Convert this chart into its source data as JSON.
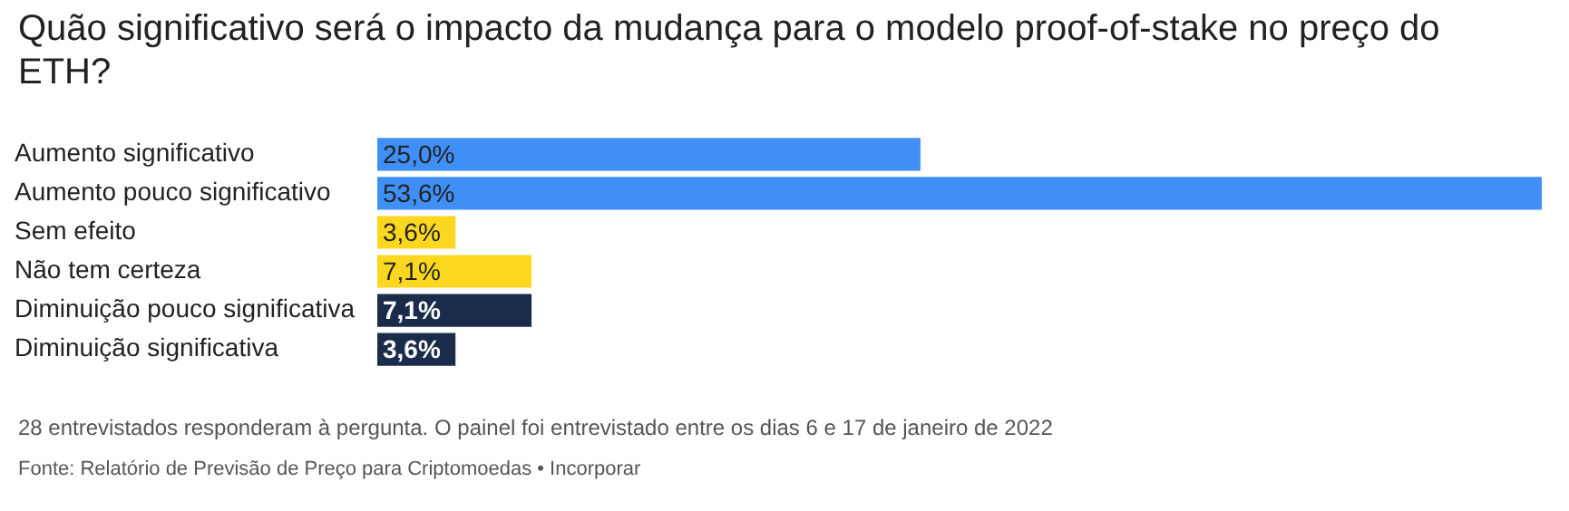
{
  "chart_data": {
    "type": "bar",
    "orientation": "horizontal",
    "title": "Quão significativo será o impacto da mudança para o modelo proof-of-stake no preço do ETH?",
    "categories": [
      "Aumento significativo",
      "Aumento pouco significativo",
      "Sem efeito",
      "Não tem certeza",
      "Diminuição pouco significativa",
      "Diminuição significativa"
    ],
    "values": [
      25.0,
      53.6,
      3.6,
      7.1,
      7.1,
      3.6
    ],
    "colors": [
      "#3f8ff7",
      "#3f8ff7",
      "#fbd720",
      "#fbd720",
      "#1b2c4b",
      "#1b2c4b"
    ],
    "value_labels": [
      "25,0%",
      "53,6%",
      "3,6%",
      "7,1%",
      "7,1%",
      "3,6%"
    ],
    "grid": false,
    "legend": false,
    "annotations": [
      "28 entrevistados responderam à pergunta. O painel foi entrevistado entre os dias 6 e 17 de janeiro de 2022",
      "Fonte: Relatório de Previsão de Preço para Criptomoedas • Incorporar"
    ]
  }
}
